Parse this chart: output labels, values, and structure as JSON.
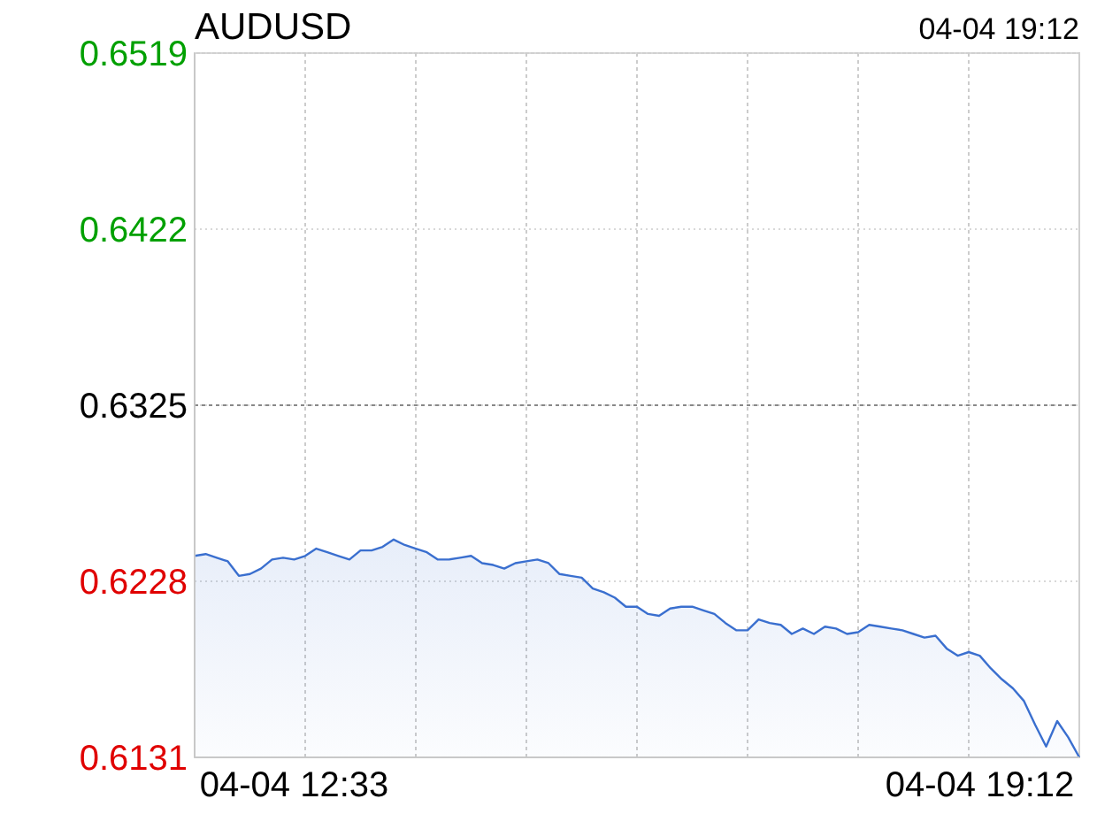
{
  "chart_data": {
    "type": "area",
    "title": "AUDUSD",
    "annotations": [
      "04-04 19:12"
    ],
    "categories": [
      null,
      null,
      null,
      null,
      null,
      null,
      null,
      null,
      null,
      "04-04 12:33",
      null,
      null,
      null,
      null,
      null,
      null,
      null,
      null,
      null,
      null,
      null,
      null,
      null,
      null,
      null,
      null,
      null,
      null,
      null,
      null,
      null,
      null,
      null,
      null,
      null,
      null,
      null,
      null,
      null,
      null,
      null,
      null,
      null,
      null,
      null,
      null,
      null,
      null,
      null,
      null,
      null,
      null,
      null,
      null,
      null,
      null,
      null,
      null,
      null,
      null,
      null,
      null,
      null,
      null,
      null,
      null,
      null,
      null,
      null,
      null,
      null,
      "04-04 19:12",
      null,
      null,
      null,
      null,
      null,
      null,
      null,
      null,
      null
    ],
    "ylim": [
      0.6131,
      0.6519
    ],
    "yticks": [
      0.6131,
      0.6228,
      0.6325,
      0.6422,
      0.6519
    ],
    "grid": true,
    "ref_lines": [
      {
        "axis": "y",
        "value": 0.6325,
        "label": null,
        "color": "#888888",
        "line_style": "dashed"
      }
    ],
    "series": [
      {
        "color": "#3a6fcf",
        "values": [
          0.6242,
          0.6243,
          0.6241,
          0.6239,
          0.6231,
          0.6232,
          0.6235,
          0.624,
          0.6241,
          0.624,
          0.6242,
          0.6246,
          0.6244,
          0.6242,
          0.624,
          0.6245,
          0.6245,
          0.6247,
          0.6251,
          0.6248,
          0.6246,
          0.6244,
          0.624,
          0.624,
          0.6241,
          0.6242,
          0.6238,
          0.6237,
          0.6235,
          0.6238,
          0.6239,
          0.624,
          0.6238,
          0.6232,
          0.6231,
          0.623,
          0.6224,
          0.6222,
          0.6219,
          0.6214,
          0.6214,
          0.621,
          0.6209,
          0.6213,
          0.6214,
          0.6214,
          0.6212,
          0.621,
          0.6205,
          0.6201,
          0.6201,
          0.6207,
          0.6205,
          0.6204,
          0.6199,
          0.6202,
          0.6199,
          0.6203,
          0.6202,
          0.6199,
          0.62,
          0.6204,
          0.6203,
          0.6202,
          0.6201,
          0.6199,
          0.6197,
          0.6198,
          0.6191,
          0.6187,
          0.6189,
          0.6187,
          0.618,
          0.6174,
          0.6169,
          0.6162,
          0.6149,
          0.6137,
          0.6151,
          0.6142,
          0.6131
        ]
      }
    ]
  }
}
